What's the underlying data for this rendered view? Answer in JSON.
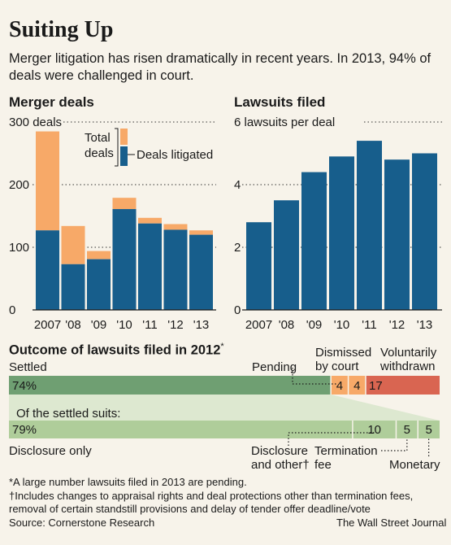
{
  "title": "Suiting Up",
  "subtitle": "Merger litigation has risen dramatically in recent years. In 2013, 94% of deals were challenged in court.",
  "colors": {
    "blue": "#175e8c",
    "orange": "#f7a968",
    "green_dark": "#6f9f72",
    "green_light": "#afcd9a",
    "orange_bar": "#f7a968",
    "red": "#d96551",
    "dark_red": "#c45a45"
  },
  "merger_chart": {
    "section_title": "Merger deals",
    "legend": {
      "total": "Total deals",
      "litigated": "Deals litigated"
    }
  },
  "lawsuits_chart": {
    "section_title": "Lawsuits filed"
  },
  "chart_data": [
    {
      "type": "bar",
      "title": "Merger deals",
      "categories": [
        "2007",
        "'08",
        "'09",
        "'10",
        "'11",
        "'12",
        "'13"
      ],
      "series": [
        {
          "name": "Total deals",
          "values": [
            285,
            134,
            94,
            179,
            147,
            137,
            127
          ]
        },
        {
          "name": "Deals litigated",
          "values": [
            127,
            73,
            81,
            161,
            138,
            128,
            120
          ]
        }
      ],
      "ylim": [
        0,
        300
      ],
      "yticks": [
        0,
        100,
        200,
        300
      ],
      "ytick_labels": [
        "0",
        "100",
        "200",
        "300 deals"
      ]
    },
    {
      "type": "bar",
      "title": "Lawsuits filed",
      "categories": [
        "2007",
        "'08",
        "'09",
        "'10",
        "'11",
        "'12",
        "'13"
      ],
      "values": [
        2.8,
        3.5,
        4.4,
        4.9,
        5.4,
        4.8,
        5.0
      ],
      "ylim": [
        0,
        6
      ],
      "yticks": [
        0,
        2,
        4,
        6
      ],
      "ytick_labels": [
        "0",
        "2",
        "4",
        "6 lawsuits per deal"
      ]
    },
    {
      "type": "bar",
      "title": "Outcome of lawsuits filed in 2012",
      "title_mark": "*",
      "orientation": "horizontal-stacked",
      "bars": [
        {
          "name": "Outcome",
          "segments": [
            {
              "label": "Settled",
              "value": 74,
              "text": "74%"
            },
            {
              "label": "Pending",
              "value": 4,
              "text": "4"
            },
            {
              "label": "Dismissed by court",
              "value": 4,
              "text": "4"
            },
            {
              "label": "Voluntarily withdrawn",
              "value": 17,
              "text": "17"
            }
          ]
        },
        {
          "name": "Of the settled suits:",
          "segments": [
            {
              "label": "Disclosure only",
              "value": 79,
              "text": "79%"
            },
            {
              "label": "Disclosure and other",
              "label_mark": "†",
              "value": 10,
              "text": "10"
            },
            {
              "label": "Termination fee",
              "value": 5,
              "text": "5"
            },
            {
              "label": "Monetary",
              "value": 5,
              "text": "5"
            }
          ]
        }
      ]
    }
  ],
  "labels": {
    "settled": "Settled",
    "pending": "Pending",
    "dismissed_1": "Dismissed",
    "dismissed_2": "by court",
    "withdrawn_1": "Voluntarily",
    "withdrawn_2": "withdrawn",
    "of_settled": "Of the settled suits:",
    "disclosure_only": "Disclosure only",
    "disclosure_other_1": "Disclosure",
    "disclosure_other_2": "and other†",
    "termination_1": "Termination",
    "termination_2": "fee",
    "monetary": "Monetary"
  },
  "notes": {
    "n1": "*A large number lawsuits filed in 2013 are pending.",
    "n2": "†Includes changes to appraisal rights and deal protections other than termination fees,",
    "n3": "removal of certain standstill provisions and delay of tender offer deadline/vote",
    "source": "Source: Cornerstone Research",
    "credit": "The Wall Street Journal"
  }
}
